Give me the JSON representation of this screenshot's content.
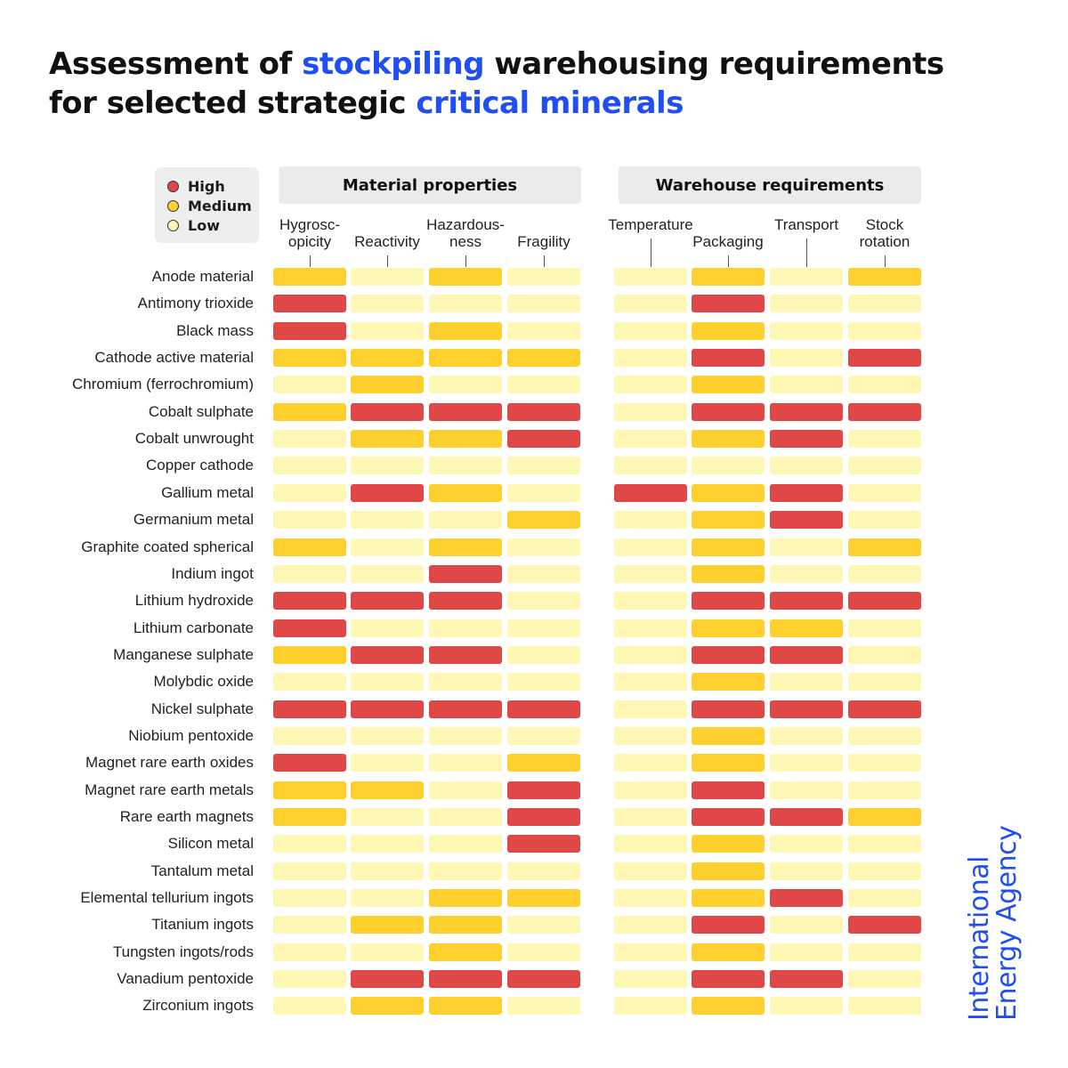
{
  "title": {
    "part1": "Assessment of ",
    "highlight1": "stockpiling",
    "part2": " warehousing requirements",
    "part3": "for selected strategic ",
    "highlight2": "critical minerals"
  },
  "colors": {
    "High": "#e04848",
    "Medium": "#fdd02e",
    "Low": "#fff7b4",
    "accent": "#1f4ef2"
  },
  "legend": [
    {
      "label": "High",
      "color": "#e04848"
    },
    {
      "label": "Medium",
      "color": "#fdd02e"
    },
    {
      "label": "Low",
      "color": "#fff7b4"
    }
  ],
  "brand": {
    "line1": "International",
    "line2": "Energy Agency"
  },
  "chart_data": {
    "type": "heatmap",
    "scale": [
      "High",
      "Medium",
      "Low"
    ],
    "groups": [
      {
        "name": "Material properties",
        "columns": [
          "Hygrosc-\nopicity",
          "Reactivity",
          "Hazardous-\nness",
          "Fragility"
        ]
      },
      {
        "name": "Warehouse requirements",
        "columns": [
          "Temperature",
          "Packaging",
          "Transport",
          "Stock\nrotation"
        ]
      }
    ],
    "rows": [
      {
        "label": "Anode material",
        "values": [
          "M",
          "L",
          "M",
          "L",
          "L",
          "M",
          "L",
          "M"
        ]
      },
      {
        "label": "Antimony trioxide",
        "values": [
          "H",
          "L",
          "L",
          "L",
          "L",
          "H",
          "L",
          "L"
        ]
      },
      {
        "label": "Black mass",
        "values": [
          "H",
          "L",
          "M",
          "L",
          "L",
          "M",
          "L",
          "L"
        ]
      },
      {
        "label": "Cathode active material",
        "values": [
          "M",
          "M",
          "M",
          "M",
          "L",
          "H",
          "L",
          "H"
        ]
      },
      {
        "label": "Chromium (ferrochromium)",
        "values": [
          "L",
          "M",
          "L",
          "L",
          "L",
          "M",
          "L",
          "L"
        ]
      },
      {
        "label": "Cobalt sulphate",
        "values": [
          "M",
          "H",
          "H",
          "H",
          "L",
          "H",
          "H",
          "H"
        ]
      },
      {
        "label": "Cobalt unwrought",
        "values": [
          "L",
          "M",
          "M",
          "H",
          "L",
          "M",
          "H",
          "L"
        ]
      },
      {
        "label": "Copper cathode",
        "values": [
          "L",
          "L",
          "L",
          "L",
          "L",
          "L",
          "L",
          "L"
        ]
      },
      {
        "label": "Gallium metal",
        "values": [
          "L",
          "H",
          "M",
          "L",
          "H",
          "M",
          "H",
          "L"
        ]
      },
      {
        "label": "Germanium metal",
        "values": [
          "L",
          "L",
          "L",
          "M",
          "L",
          "M",
          "H",
          "L"
        ]
      },
      {
        "label": "Graphite coated spherical",
        "values": [
          "M",
          "L",
          "M",
          "L",
          "L",
          "M",
          "L",
          "M"
        ]
      },
      {
        "label": "Indium ingot",
        "values": [
          "L",
          "L",
          "H",
          "L",
          "L",
          "M",
          "L",
          "L"
        ]
      },
      {
        "label": "Lithium hydroxide",
        "values": [
          "H",
          "H",
          "H",
          "L",
          "L",
          "H",
          "H",
          "H"
        ]
      },
      {
        "label": "Lithium carbonate",
        "values": [
          "H",
          "L",
          "L",
          "L",
          "L",
          "M",
          "M",
          "L"
        ]
      },
      {
        "label": "Manganese sulphate",
        "values": [
          "M",
          "H",
          "H",
          "L",
          "L",
          "H",
          "H",
          "L"
        ]
      },
      {
        "label": "Molybdic oxide",
        "values": [
          "L",
          "L",
          "L",
          "L",
          "L",
          "M",
          "L",
          "L"
        ]
      },
      {
        "label": "Nickel sulphate",
        "values": [
          "H",
          "H",
          "H",
          "H",
          "L",
          "H",
          "H",
          "H"
        ]
      },
      {
        "label": "Niobium pentoxide",
        "values": [
          "L",
          "L",
          "L",
          "L",
          "L",
          "M",
          "L",
          "L"
        ]
      },
      {
        "label": "Magnet rare earth oxides",
        "values": [
          "H",
          "L",
          "L",
          "M",
          "L",
          "M",
          "L",
          "L"
        ]
      },
      {
        "label": "Magnet rare earth metals",
        "values": [
          "M",
          "M",
          "L",
          "H",
          "L",
          "H",
          "L",
          "L"
        ]
      },
      {
        "label": "Rare earth magnets",
        "values": [
          "M",
          "L",
          "L",
          "H",
          "L",
          "H",
          "H",
          "M"
        ]
      },
      {
        "label": "Silicon metal",
        "values": [
          "L",
          "L",
          "L",
          "H",
          "L",
          "M",
          "L",
          "L"
        ]
      },
      {
        "label": "Tantalum metal",
        "values": [
          "L",
          "L",
          "L",
          "L",
          "L",
          "M",
          "L",
          "L"
        ]
      },
      {
        "label": "Elemental tellurium ingots",
        "values": [
          "L",
          "L",
          "M",
          "M",
          "L",
          "M",
          "H",
          "L"
        ]
      },
      {
        "label": "Titanium ingots",
        "values": [
          "L",
          "M",
          "M",
          "L",
          "L",
          "H",
          "L",
          "H"
        ]
      },
      {
        "label": "Tungsten ingots/rods",
        "values": [
          "L",
          "L",
          "M",
          "L",
          "L",
          "M",
          "L",
          "L"
        ]
      },
      {
        "label": "Vanadium pentoxide",
        "values": [
          "L",
          "H",
          "H",
          "H",
          "L",
          "H",
          "H",
          "L"
        ]
      },
      {
        "label": "Zirconium ingots",
        "values": [
          "L",
          "M",
          "M",
          "L",
          "L",
          "M",
          "L",
          "L"
        ]
      }
    ]
  }
}
